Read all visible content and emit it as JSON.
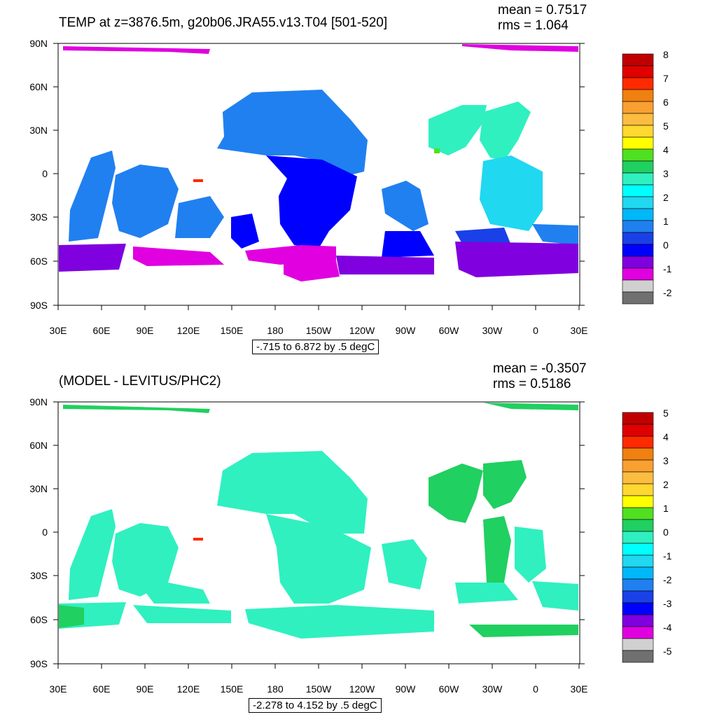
{
  "panels": [
    {
      "title": "TEMP at z=3876.5m, g20b06.JRA55.v13.T04 [501-520]",
      "mean": "mean = 0.7517",
      "rms": "rms = 1.064",
      "range_label": "-.715 to 6.872 by .5 degC",
      "colorbar": {
        "colors": [
          "#c00000",
          "#e00000",
          "#ff2a00",
          "#f08010",
          "#f8a030",
          "#fcbc40",
          "#ffd830",
          "#ffff00",
          "#50e020",
          "#20d060",
          "#30f0c0",
          "#00ffff",
          "#20d8f0",
          "#00b8f8",
          "#2080f0",
          "#1a40e8",
          "#0000ff",
          "#8000e0",
          "#e000e0",
          "#d0d0d0",
          "#707070"
        ],
        "labels": [
          "8",
          "7",
          "6",
          "5",
          "4",
          "3",
          "2",
          "1",
          "0",
          "-1",
          "-2"
        ]
      }
    },
    {
      "title": "(MODEL - LEVITUS/PHC2)",
      "mean": "mean = -0.3507",
      "rms": "rms = 0.5186",
      "range_label": "-2.278 to 4.152 by .5 degC",
      "colorbar": {
        "colors": [
          "#c00000",
          "#e00000",
          "#ff2a00",
          "#f08010",
          "#f8a030",
          "#fcbc40",
          "#ffd830",
          "#ffff00",
          "#50e020",
          "#20d060",
          "#30f0c0",
          "#00ffff",
          "#20d8f0",
          "#00b8f8",
          "#2080f0",
          "#1a40e8",
          "#0000ff",
          "#8000e0",
          "#e000e0",
          "#d0d0d0",
          "#707070"
        ],
        "labels": [
          "5",
          "4",
          "3",
          "2",
          "1",
          "0",
          "-1",
          "-2",
          "-3",
          "-4",
          "-5"
        ]
      }
    }
  ],
  "axis": {
    "lat_labels": [
      "90N",
      "60N",
      "30N",
      "0",
      "30S",
      "60S",
      "90S"
    ],
    "lon_labels": [
      "30E",
      "60E",
      "90E",
      "120E",
      "150E",
      "180",
      "150W",
      "120W",
      "90W",
      "60W",
      "30W",
      "0",
      "30E"
    ]
  }
}
